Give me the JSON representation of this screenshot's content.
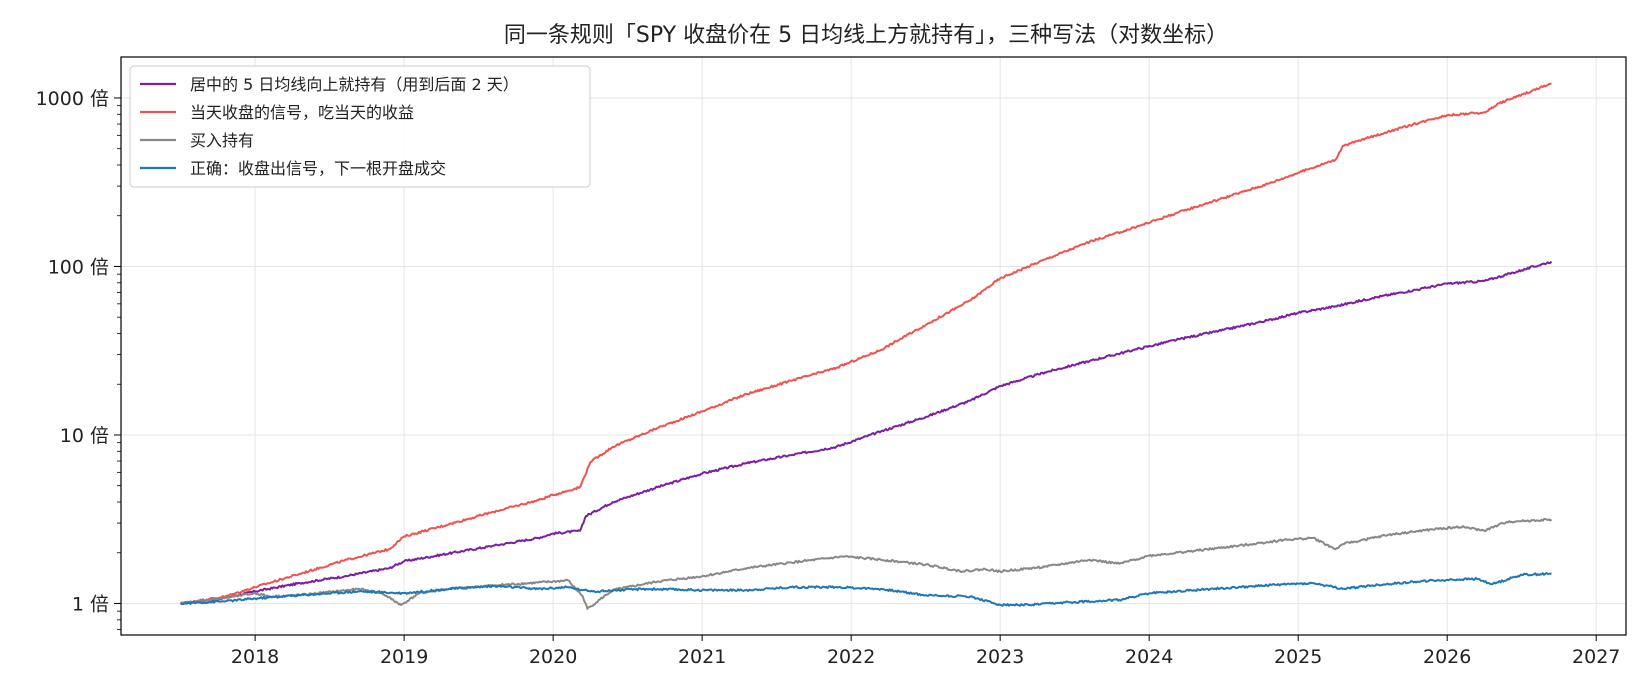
{
  "chart_data": {
    "type": "line",
    "title": "同一条规则「SPY 收盘价在 5 日均线上方就持有」，三种写法（对数坐标）",
    "xlabel": "",
    "ylabel": "",
    "y_scale": "log",
    "xlim": [
      2017.1,
      2027.2
    ],
    "ylim": [
      0.65,
      1750
    ],
    "x_ticks": [
      2018,
      2019,
      2020,
      2021,
      2022,
      2023,
      2024,
      2025,
      2026,
      2027
    ],
    "x_tick_labels": [
      "2018",
      "2019",
      "2020",
      "2021",
      "2022",
      "2023",
      "2024",
      "2025",
      "2026",
      "2027"
    ],
    "y_ticks": [
      1,
      10,
      100,
      1000
    ],
    "y_tick_labels": [
      "1 倍",
      "10 倍",
      "100 倍",
      "1000 倍"
    ],
    "grid": true,
    "legend_position": "top-left",
    "series": [
      {
        "name": "居中的 5 日均线向上就持有（用到后面 2 天）",
        "color": "#7b1fa2",
        "x": [
          2017.5,
          2017.8,
          2018.0,
          2018.3,
          2018.6,
          2018.9,
          2019.0,
          2019.3,
          2019.6,
          2019.9,
          2020.0,
          2020.18,
          2020.22,
          2020.4,
          2020.7,
          2021.0,
          2021.3,
          2021.6,
          2021.9,
          2022.2,
          2022.5,
          2022.8,
          2023.0,
          2023.3,
          2023.6,
          2023.9,
          2024.2,
          2024.5,
          2024.8,
          2025.0,
          2025.25,
          2025.5,
          2025.8,
          2026.0,
          2026.25,
          2026.5,
          2026.7
        ],
        "y": [
          1.0,
          1.08,
          1.18,
          1.32,
          1.45,
          1.62,
          1.78,
          1.98,
          2.2,
          2.45,
          2.6,
          2.7,
          3.3,
          4.0,
          4.9,
          5.9,
          6.8,
          7.6,
          8.5,
          10.5,
          12.8,
          16.0,
          19.5,
          23.5,
          27.5,
          32.0,
          37.0,
          42.0,
          48.0,
          53.0,
          58.0,
          65.0,
          73.0,
          79.0,
          82.0,
          95.0,
          107.0
        ]
      },
      {
        "name": "当天收盘的信号，吃当天的收益",
        "color": "#ef5350",
        "x": [
          2017.5,
          2017.8,
          2018.0,
          2018.3,
          2018.6,
          2018.9,
          2019.0,
          2019.3,
          2019.6,
          2019.9,
          2020.0,
          2020.18,
          2020.25,
          2020.4,
          2020.7,
          2021.0,
          2021.3,
          2021.6,
          2021.9,
          2022.2,
          2022.5,
          2022.8,
          2023.0,
          2023.3,
          2023.6,
          2023.9,
          2024.2,
          2024.5,
          2024.8,
          2025.0,
          2025.25,
          2025.3,
          2025.6,
          2025.9,
          2026.0,
          2026.25,
          2026.35,
          2026.7
        ],
        "y": [
          1.0,
          1.1,
          1.25,
          1.5,
          1.8,
          2.1,
          2.5,
          2.95,
          3.5,
          4.1,
          4.4,
          4.9,
          6.9,
          8.5,
          11.0,
          13.8,
          17.5,
          21.0,
          25.0,
          32.0,
          45.0,
          63.0,
          85.0,
          110.0,
          140.0,
          170.0,
          210.0,
          255.0,
          310.0,
          360.0,
          430.0,
          520.0,
          630.0,
          750.0,
          790.0,
          820.0,
          930.0,
          1220.0
        ]
      },
      {
        "name": "买入持有",
        "color": "#888888",
        "x": [
          2017.5,
          2017.8,
          2018.0,
          2018.1,
          2018.3,
          2018.7,
          2018.85,
          2018.98,
          2019.1,
          2019.3,
          2019.6,
          2019.9,
          2020.1,
          2020.2,
          2020.23,
          2020.4,
          2020.7,
          2021.0,
          2021.3,
          2021.6,
          2021.95,
          2022.2,
          2022.5,
          2022.75,
          2022.9,
          2023.0,
          2023.3,
          2023.6,
          2023.8,
          2024.0,
          2024.3,
          2024.6,
          2024.9,
          2025.1,
          2025.25,
          2025.3,
          2025.6,
          2025.9,
          2026.1,
          2026.25,
          2026.4,
          2026.7
        ],
        "y": [
          1.0,
          1.08,
          1.15,
          1.1,
          1.12,
          1.22,
          1.15,
          0.98,
          1.15,
          1.22,
          1.28,
          1.33,
          1.37,
          1.1,
          0.93,
          1.2,
          1.35,
          1.45,
          1.62,
          1.75,
          1.9,
          1.82,
          1.7,
          1.55,
          1.6,
          1.55,
          1.65,
          1.82,
          1.72,
          1.92,
          2.05,
          2.2,
          2.38,
          2.45,
          2.1,
          2.25,
          2.55,
          2.75,
          2.85,
          2.7,
          3.05,
          3.15
        ]
      },
      {
        "name": "正确：收盘出信号，下一根开盘成交",
        "color": "#1f77b4",
        "x": [
          2017.5,
          2017.8,
          2018.0,
          2018.3,
          2018.7,
          2019.0,
          2019.3,
          2019.6,
          2019.9,
          2020.1,
          2020.2,
          2020.3,
          2020.6,
          2021.0,
          2021.3,
          2021.6,
          2021.9,
          2022.2,
          2022.5,
          2022.8,
          2023.0,
          2023.2,
          2023.5,
          2023.8,
          2024.0,
          2024.3,
          2024.6,
          2024.9,
          2025.1,
          2025.3,
          2025.5,
          2025.8,
          2026.0,
          2026.2,
          2026.3,
          2026.5,
          2026.7
        ],
        "y": [
          1.0,
          1.03,
          1.07,
          1.12,
          1.18,
          1.15,
          1.22,
          1.27,
          1.22,
          1.25,
          1.2,
          1.18,
          1.22,
          1.2,
          1.2,
          1.25,
          1.25,
          1.22,
          1.12,
          1.1,
          0.98,
          0.98,
          1.02,
          1.05,
          1.15,
          1.2,
          1.25,
          1.3,
          1.32,
          1.22,
          1.28,
          1.35,
          1.38,
          1.4,
          1.3,
          1.48,
          1.5
        ]
      }
    ]
  }
}
